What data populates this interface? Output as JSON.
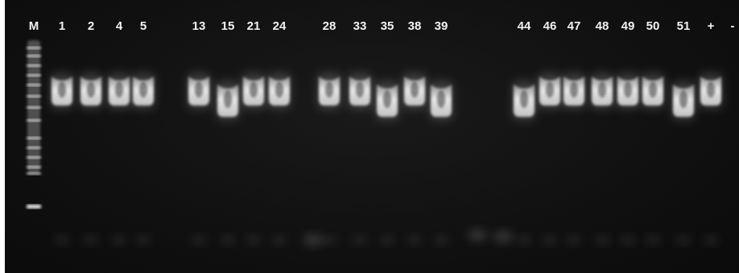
{
  "gel": {
    "lanes": [
      {
        "label": "M",
        "type": "marker"
      },
      {
        "label": "1",
        "band": "high"
      },
      {
        "label": "2",
        "band": "high"
      },
      {
        "label": "4",
        "band": "high"
      },
      {
        "label": "5",
        "band": "high"
      },
      {
        "label": "13",
        "band": "high"
      },
      {
        "label": "15",
        "band": "low"
      },
      {
        "label": "21",
        "band": "high"
      },
      {
        "label": "24",
        "band": "high"
      },
      {
        "label": "28",
        "band": "high"
      },
      {
        "label": "33",
        "band": "high"
      },
      {
        "label": "35",
        "band": "low"
      },
      {
        "label": "38",
        "band": "high"
      },
      {
        "label": "39",
        "band": "low"
      },
      {
        "label": "44",
        "band": "low"
      },
      {
        "label": "46",
        "band": "high"
      },
      {
        "label": "47",
        "band": "high"
      },
      {
        "label": "48",
        "band": "high"
      },
      {
        "label": "49",
        "band": "high"
      },
      {
        "label": "50",
        "band": "high"
      },
      {
        "label": "51",
        "band": "low"
      },
      {
        "label": "+",
        "band": "high"
      },
      {
        "label": "-",
        "band": "none"
      }
    ]
  },
  "colors": {
    "background": "#111111",
    "band": "#e6e6e6",
    "label": "#f2f2f2"
  }
}
